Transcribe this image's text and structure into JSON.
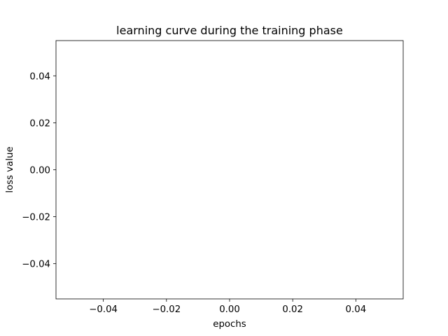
{
  "chart_data": {
    "type": "line",
    "title": "learning curve during the training phase",
    "xlabel": "epochs",
    "ylabel": "loss value",
    "xlim": [
      -0.055,
      0.055
    ],
    "ylim": [
      -0.055,
      0.055
    ],
    "xticks": [
      -0.04,
      -0.02,
      0.0,
      0.02,
      0.04
    ],
    "yticks": [
      -0.04,
      -0.02,
      0.0,
      0.02,
      0.04
    ],
    "xtick_labels": [
      "−0.04",
      "−0.02",
      "0.00",
      "0.02",
      "0.04"
    ],
    "ytick_labels": [
      "−0.04",
      "−0.02",
      "0.00",
      "0.02",
      "0.04"
    ],
    "grid": false,
    "series": [
      {
        "x": [],
        "y": []
      }
    ]
  }
}
